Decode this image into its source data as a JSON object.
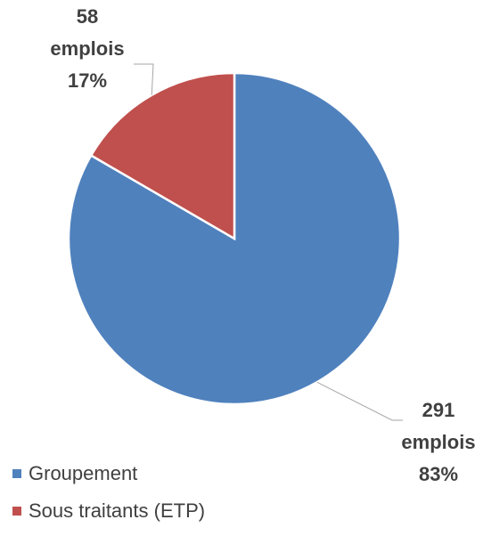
{
  "chart_data": {
    "type": "pie",
    "title": "",
    "slices": [
      {
        "name": "Groupement",
        "value": 291,
        "unit_label": "emplois",
        "percent": "83%",
        "color": "#4f81bd"
      },
      {
        "name": "Sous traitants (ETP)",
        "value": 58,
        "unit_label": "emplois",
        "percent": "17%",
        "color": "#c0504d"
      }
    ],
    "legend_position": "bottom-left"
  }
}
